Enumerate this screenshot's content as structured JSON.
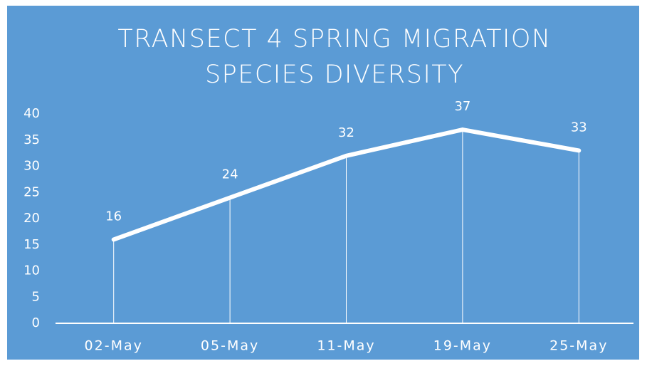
{
  "chart_data": {
    "type": "line",
    "title": "TRANSECT 4 SPRING MIGRATION SPECIES DIVERSITY",
    "categories": [
      "02-May",
      "05-May",
      "11-May",
      "19-May",
      "25-May"
    ],
    "values": [
      16,
      24,
      32,
      37,
      33
    ],
    "color": "#ffffff",
    "ylim": [
      0,
      40
    ],
    "yticks": [
      0,
      5,
      10,
      15,
      20,
      25,
      30,
      35,
      40
    ],
    "grid": false,
    "data_labels": true,
    "drop_lines": true
  }
}
